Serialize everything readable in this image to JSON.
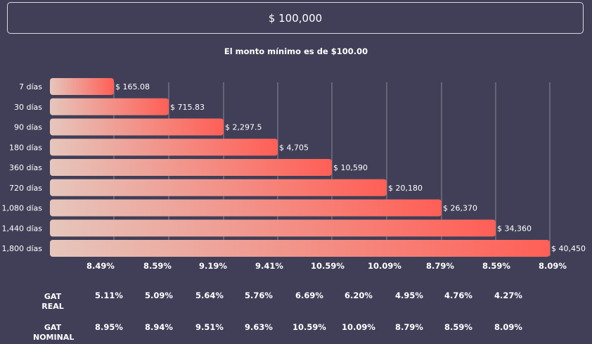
{
  "amount_input": {
    "value": "$ 100,000"
  },
  "minimum_note": "El monto mínimo es de $100.00",
  "colors": {
    "background": "#413f57",
    "bar_start": "#e6c6bc",
    "bar_end": "#ff5f56",
    "grid": "#8a889a"
  },
  "chart_data": {
    "type": "bar",
    "orientation": "horizontal",
    "categories": [
      "7 días",
      "30 días",
      "90 días",
      "180 días",
      "360 días",
      "720 días",
      "1,080 días",
      "1,440 días",
      "1,800 días"
    ],
    "values": [
      165.08,
      715.83,
      2297.5,
      4705,
      10590,
      20180,
      26370,
      34360,
      40450
    ],
    "value_labels": [
      "$ 165.08",
      "$ 715.83",
      "$ 2,297.5",
      "$ 4,705",
      "$ 10,590",
      "$ 20,180",
      "$ 26,370",
      "$ 34,360",
      "$ 40,450"
    ],
    "rate_labels": [
      "8.49%",
      "8.59%",
      "9.19%",
      "9.41%",
      "10.59%",
      "10.09%",
      "8.79%",
      "8.59%",
      "8.09%"
    ],
    "grid": true,
    "legend": "none"
  },
  "table": {
    "rows": [
      {
        "label_line1": "GAT",
        "label_line2": "REAL",
        "values": [
          "5.11%",
          "5.09%",
          "5.64%",
          "5.76%",
          "6.69%",
          "6.20%",
          "4.95%",
          "4.76%",
          "4.27%"
        ]
      },
      {
        "label_line1": "GAT",
        "label_line2": "NOMINAL",
        "values": [
          "8.95%",
          "8.94%",
          "9.51%",
          "9.63%",
          "10.59%",
          "10.09%",
          "8.79%",
          "8.59%",
          "8.09%"
        ]
      }
    ]
  }
}
